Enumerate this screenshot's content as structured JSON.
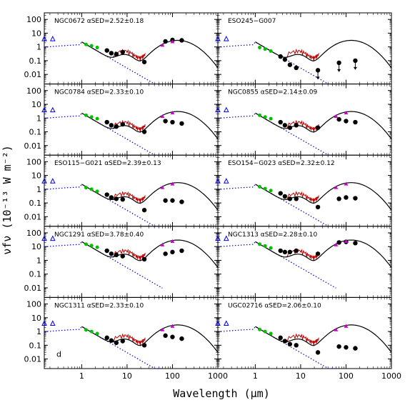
{
  "chart_data": {
    "type": "scatter",
    "xlabel": "Wavelength (μm)",
    "ylabel": "νfν (10⁻¹³ W m⁻²)",
    "x_scale": "log",
    "y_scale": "log",
    "xlim": [
      0.15,
      1000
    ],
    "ylim": [
      0.002,
      300
    ],
    "xticks": [
      1,
      10,
      100,
      1000
    ],
    "yticks": [
      0.01,
      0.1,
      1,
      10,
      100
    ],
    "yticklabels": [
      "0.01",
      "0.1",
      "1",
      "10",
      "100"
    ],
    "panel_letter": "d",
    "colors": {
      "observed": "#000000",
      "model_total": "#000000",
      "stellar": "#0000cc",
      "pah": "#c00000",
      "optical": "#00c000",
      "iras": "#cc00cc",
      "uv": "#0000ee"
    },
    "panels": [
      {
        "name": "NGC0672",
        "alpha": "2.52±0.18",
        "col": 0,
        "row": 0,
        "scale": 1,
        "points": [
          [
            1.25,
            1.5
          ],
          [
            1.65,
            1.2
          ],
          [
            2.2,
            0.9
          ],
          [
            3.6,
            0.55
          ],
          [
            4.5,
            0.35
          ],
          [
            5.8,
            0.3
          ],
          [
            8.0,
            0.42
          ],
          [
            24,
            0.08
          ],
          [
            70,
            2.5
          ],
          [
            100,
            3.2
          ],
          [
            160,
            3.0
          ]
        ],
        "upper_limits": []
      },
      {
        "name": "ESO245−G007",
        "alpha": "",
        "col": 1,
        "row": 0,
        "scale": 1,
        "points": [
          [
            1.25,
            0.9
          ],
          [
            1.65,
            0.7
          ],
          [
            2.2,
            0.5
          ],
          [
            3.6,
            0.2
          ],
          [
            4.5,
            0.12
          ],
          [
            5.8,
            0.05
          ],
          [
            8.0,
            0.03
          ]
        ],
        "upper_limits": [
          [
            24,
            0.02
          ],
          [
            70,
            0.07
          ],
          [
            160,
            0.1
          ]
        ]
      },
      {
        "name": "NGC0784",
        "alpha": "2.33±0.10",
        "col": 0,
        "row": 1,
        "scale": 1,
        "points": [
          [
            1.25,
            1.6
          ],
          [
            1.65,
            1.2
          ],
          [
            2.2,
            0.9
          ],
          [
            3.6,
            0.5
          ],
          [
            4.5,
            0.3
          ],
          [
            5.8,
            0.24
          ],
          [
            8.0,
            0.35
          ],
          [
            24,
            0.1
          ],
          [
            70,
            0.6
          ],
          [
            100,
            0.5
          ],
          [
            160,
            0.4
          ]
        ],
        "upper_limits": []
      },
      {
        "name": "NGC0855",
        "alpha": "2.14±0.09",
        "col": 1,
        "row": 1,
        "scale": 1,
        "points": [
          [
            1.25,
            1.6
          ],
          [
            1.65,
            1.2
          ],
          [
            2.2,
            0.9
          ],
          [
            3.6,
            0.5
          ],
          [
            4.5,
            0.3
          ],
          [
            5.8,
            0.2
          ],
          [
            8.0,
            0.3
          ],
          [
            24,
            0.2
          ],
          [
            70,
            0.8
          ],
          [
            100,
            0.6
          ],
          [
            160,
            0.5
          ]
        ],
        "upper_limits": []
      },
      {
        "name": "ESO115−G021",
        "alpha": "2.39±0.13",
        "col": 0,
        "row": 2,
        "scale": 1,
        "points": [
          [
            1.25,
            1.3
          ],
          [
            1.65,
            1.0
          ],
          [
            2.2,
            0.7
          ],
          [
            3.6,
            0.4
          ],
          [
            4.5,
            0.25
          ],
          [
            5.8,
            0.2
          ],
          [
            8.0,
            0.18
          ],
          [
            24,
            0.03
          ],
          [
            70,
            0.15
          ],
          [
            100,
            0.15
          ],
          [
            160,
            0.12
          ]
        ],
        "upper_limits": []
      },
      {
        "name": "ESO154−G023",
        "alpha": "2.32±0.12",
        "col": 1,
        "row": 2,
        "scale": 1,
        "points": [
          [
            1.25,
            1.5
          ],
          [
            1.65,
            1.1
          ],
          [
            2.2,
            0.8
          ],
          [
            3.6,
            0.5
          ],
          [
            4.5,
            0.3
          ],
          [
            5.8,
            0.2
          ],
          [
            8.0,
            0.2
          ],
          [
            24,
            0.05
          ],
          [
            70,
            0.2
          ],
          [
            100,
            0.25
          ],
          [
            160,
            0.22
          ]
        ],
        "upper_limits": []
      },
      {
        "name": "NGC1291",
        "alpha": "3.78±0.40",
        "col": 0,
        "row": 3,
        "scale": 10,
        "points": [
          [
            1.25,
            15
          ],
          [
            1.65,
            12
          ],
          [
            2.2,
            9
          ],
          [
            3.6,
            5
          ],
          [
            4.5,
            3
          ],
          [
            5.8,
            2.5
          ],
          [
            8.0,
            2
          ],
          [
            24,
            1.2
          ],
          [
            70,
            3
          ],
          [
            100,
            4
          ],
          [
            160,
            5
          ]
        ],
        "upper_limits": []
      },
      {
        "name": "NGC1313",
        "alpha": "2.28±0.10",
        "col": 1,
        "row": 3,
        "scale": 10,
        "points": [
          [
            1.25,
            15
          ],
          [
            1.65,
            11
          ],
          [
            2.2,
            8
          ],
          [
            3.6,
            5
          ],
          [
            4.5,
            4
          ],
          [
            5.8,
            4
          ],
          [
            8.0,
            5
          ],
          [
            24,
            3
          ],
          [
            70,
            20
          ],
          [
            100,
            22
          ],
          [
            160,
            18
          ]
        ],
        "upper_limits": []
      },
      {
        "name": "NGC1311",
        "alpha": "2.33±0.10",
        "col": 0,
        "row": 4,
        "scale": 1,
        "points": [
          [
            1.25,
            1.3
          ],
          [
            1.65,
            1.0
          ],
          [
            2.2,
            0.7
          ],
          [
            3.6,
            0.35
          ],
          [
            4.5,
            0.22
          ],
          [
            5.8,
            0.15
          ],
          [
            8.0,
            0.2
          ],
          [
            24,
            0.1
          ],
          [
            70,
            0.5
          ],
          [
            100,
            0.4
          ],
          [
            160,
            0.3
          ]
        ],
        "upper_limits": []
      },
      {
        "name": "UGC02716",
        "alpha": "2.06±0.10",
        "col": 1,
        "row": 4,
        "scale": 1,
        "points": [
          [
            1.25,
            1.4
          ],
          [
            1.65,
            1.0
          ],
          [
            2.2,
            0.7
          ],
          [
            3.6,
            0.35
          ],
          [
            4.5,
            0.2
          ],
          [
            5.8,
            0.12
          ],
          [
            8.0,
            0.1
          ],
          [
            24,
            0.03
          ],
          [
            70,
            0.08
          ],
          [
            100,
            0.07
          ],
          [
            160,
            0.06
          ]
        ],
        "upper_limits": []
      }
    ]
  }
}
